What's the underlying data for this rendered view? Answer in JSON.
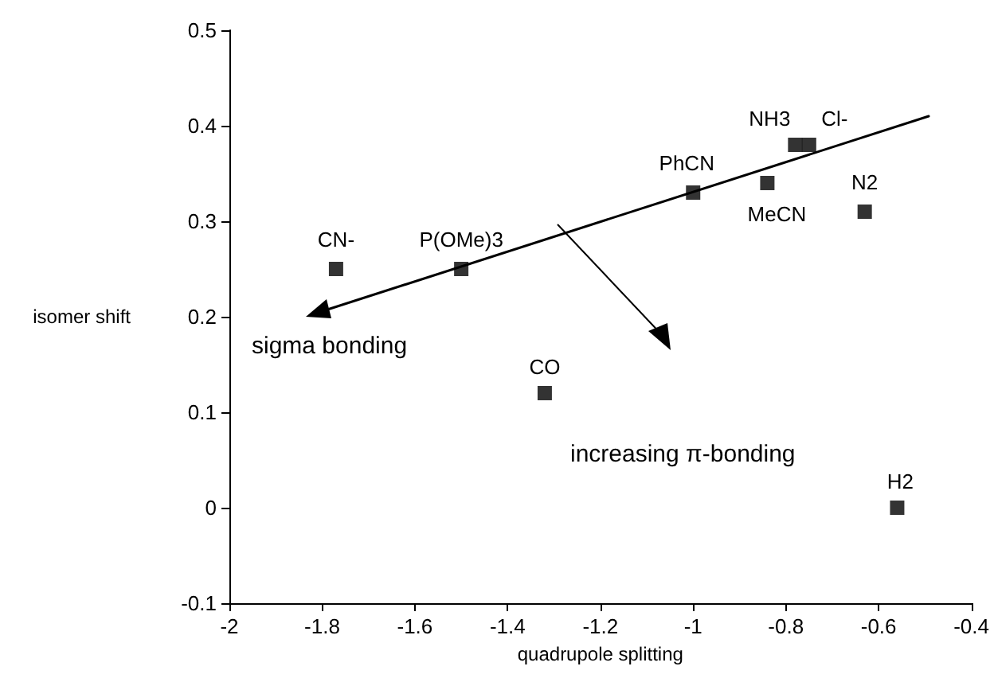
{
  "chart_data": {
    "type": "scatter",
    "xlabel": "quadrupole splitting",
    "ylabel": "isomer shift",
    "xlim": [
      -2,
      -0.4
    ],
    "xticks": [
      -2,
      -1.8,
      -1.6,
      -1.4,
      -1.2,
      -1,
      -0.8,
      -0.6,
      -0.4
    ],
    "ylim": [
      -0.1,
      0.5
    ],
    "yticks": [
      -0.1,
      0,
      0.1,
      0.2,
      0.3,
      0.4,
      0.5
    ],
    "grid": false,
    "color": "#000000",
    "marker": "square",
    "x": [
      -1.77,
      -1.5,
      -1.32,
      -1.0,
      -0.84,
      -0.78,
      -0.75,
      -0.63,
      -0.56
    ],
    "values": [
      0.25,
      0.25,
      0.12,
      0.33,
      0.34,
      0.38,
      0.38,
      0.31,
      0
    ],
    "annotations": [
      "sigma bonding",
      "increasing π-bonding",
      {
        "text": "CN-",
        "x": -1.77,
        "y": 0.25
      },
      {
        "text": "P(OMe)3",
        "x": -1.5,
        "y": 0.25
      },
      {
        "text": "CO",
        "x": -1.32,
        "y": 0.12
      },
      {
        "text": "PhCN",
        "x": -1.0,
        "y": 0.33
      },
      {
        "text": "MeCN",
        "x": -0.84,
        "y": 0.34
      },
      {
        "text": "NH3",
        "x": -0.78,
        "y": 0.38
      },
      {
        "text": "Cl-",
        "x": -0.75,
        "y": 0.38
      },
      {
        "text": "N2",
        "x": -0.63,
        "y": 0.31
      },
      {
        "text": "H2",
        "x": -0.56,
        "y": 0
      }
    ]
  }
}
